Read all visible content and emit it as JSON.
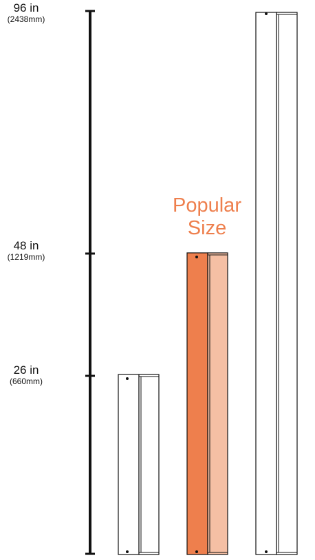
{
  "scale": {
    "marks": [
      {
        "inches": "96 in",
        "mm": "(2438mm)"
      },
      {
        "inches": "48 in",
        "mm": "(1219mm)"
      },
      {
        "inches": "26 in",
        "mm": "(660mm)"
      }
    ]
  },
  "callout": {
    "line1": "Popular",
    "line2": "Size"
  },
  "panels": [
    {
      "size": "26 in",
      "highlight": false
    },
    {
      "size": "48 in",
      "highlight": true
    },
    {
      "size": "96 in",
      "highlight": false
    }
  ],
  "colors": {
    "accent": "#EE7F4D",
    "accent_light": "#F5BFA4",
    "outline": "#111111",
    "fill": "#ffffff"
  }
}
